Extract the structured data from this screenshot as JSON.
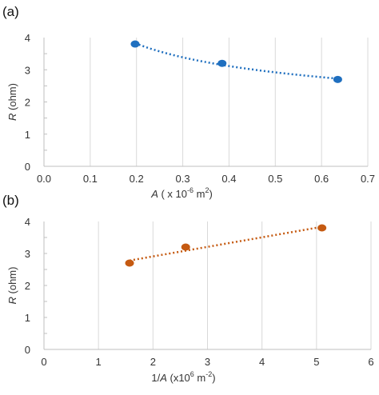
{
  "panels": [
    {
      "label": "(a)"
    },
    {
      "label": "(b)"
    }
  ],
  "colors": {
    "series_a": "#1f6fbf",
    "series_b": "#c55a11"
  },
  "chart_data": [
    {
      "type": "scatter",
      "xlabel": "A  ( x 10-6  m2)",
      "xlabel_parts": {
        "var": "A",
        "pre": "( x 10",
        "exp1": "-6",
        "mid": "  m",
        "exp2": "2",
        "post": ")"
      },
      "ylabel": "R (ohm)",
      "ylabel_parts": {
        "var": "R",
        "post": "(ohm)"
      },
      "xlim": [
        0,
        0.7
      ],
      "ylim": [
        0,
        4
      ],
      "xticks": [
        "0.0",
        "0.1",
        "0.2",
        "0.3",
        "0.4",
        "0.5",
        "0.6",
        "0.7"
      ],
      "xtick_values": [
        0,
        0.1,
        0.2,
        0.3,
        0.4,
        0.5,
        0.6,
        0.7
      ],
      "yticks": [
        "0",
        "1",
        "2",
        "3",
        "4"
      ],
      "ytick_values": [
        0,
        1,
        2,
        3,
        4
      ],
      "grid": "vertical",
      "trendline": "power",
      "series": [
        {
          "x": [
            0.197,
            0.385,
            0.635
          ],
          "y": [
            3.8,
            3.2,
            2.7
          ]
        }
      ]
    },
    {
      "type": "scatter",
      "xlabel": "1/A (x106 m-2)",
      "xlabel_parts": {
        "pre": "1/",
        "var": "A",
        "mid": " (x10",
        "exp1": "6",
        "mid2": " m",
        "exp2": "-2",
        "post": ")"
      },
      "ylabel": "R (ohm)",
      "ylabel_parts": {
        "var": "R",
        "post": "(ohm)"
      },
      "xlim": [
        0,
        6
      ],
      "ylim": [
        0,
        4
      ],
      "xticks": [
        "0",
        "1",
        "2",
        "3",
        "4",
        "5",
        "6"
      ],
      "xtick_values": [
        0,
        1,
        2,
        3,
        4,
        5,
        6
      ],
      "yticks": [
        "0",
        "1",
        "2",
        "3",
        "4"
      ],
      "ytick_values": [
        0,
        1,
        2,
        3,
        4
      ],
      "grid": "vertical",
      "trendline": "linear",
      "series": [
        {
          "x": [
            1.57,
            2.6,
            5.1
          ],
          "y": [
            2.7,
            3.2,
            3.8
          ]
        }
      ]
    }
  ]
}
